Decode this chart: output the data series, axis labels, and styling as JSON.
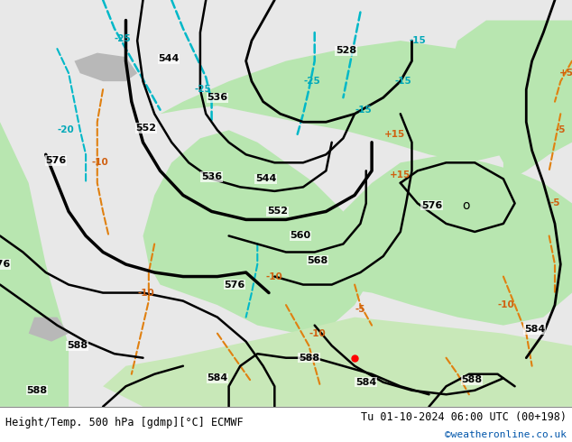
{
  "title_left": "Height/Temp. 500 hPa [gdmp][°C] ECMWF",
  "title_right": "Tu 01-10-2024 06:00 UTC (00+198)",
  "credit": "©weatheronline.co.uk",
  "bg_color": "#d0d0d0",
  "land_color_warm": "#b8e6b0",
  "land_color_neutral": "#c8c8c8",
  "figsize": [
    6.34,
    4.9
  ],
  "dpi": 100,
  "bottom_bar_color": "#f0f0f0",
  "bottom_bar_height": 0.08,
  "credit_color": "#0055aa"
}
